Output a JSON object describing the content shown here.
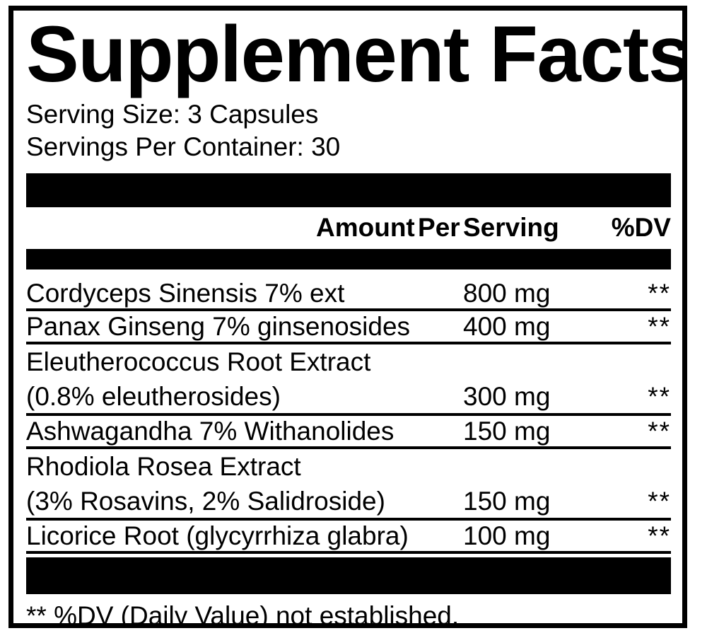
{
  "label": {
    "title": "Supplement Facts",
    "serving_size": "Serving Size: 3 Capsules",
    "servings_per_container": "Servings Per Container: 30",
    "header": {
      "amount_label": "Amount Per Serving",
      "dv_label": "%DV"
    },
    "rows": [
      {
        "name": "Cordyceps Sinensis 7% ext",
        "amount": "800 mg",
        "dv": "**"
      },
      {
        "name": "Panax Ginseng 7% ginsenosides",
        "amount": "400 mg",
        "dv": "**"
      },
      {
        "name": "Eleutherococcus Root Extract",
        "name2": "(0.8% eleutherosides)",
        "amount": "300 mg",
        "dv": "**"
      },
      {
        "name": "Ashwagandha 7% Withanolides",
        "amount": "150 mg",
        "dv": "**"
      },
      {
        "name": "Rhodiola Rosea Extract",
        "name2": "(3% Rosavins, 2% Salidroside)",
        "amount": "150 mg",
        "dv": "**"
      },
      {
        "name": "Licorice Root (glycyrrhiza glabra)",
        "amount": "100 mg",
        "dv": "**"
      }
    ],
    "footnote": "** %DV (Daily Value) not established.",
    "colors": {
      "ink": "#000000",
      "background": "#ffffff"
    }
  }
}
